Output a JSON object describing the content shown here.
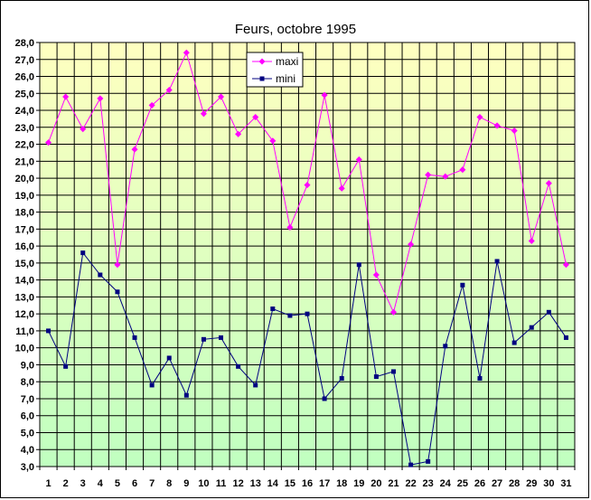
{
  "chart_data": {
    "type": "line",
    "title": "Feurs, octobre 1995",
    "x": [
      1,
      2,
      3,
      4,
      5,
      6,
      7,
      8,
      9,
      10,
      11,
      12,
      13,
      14,
      15,
      16,
      17,
      18,
      19,
      20,
      21,
      22,
      23,
      24,
      25,
      26,
      27,
      28,
      29,
      30,
      31
    ],
    "series": [
      {
        "name": "maxi",
        "color": "#ff00ff",
        "marker": "diamond",
        "values": [
          22.1,
          24.8,
          22.9,
          24.7,
          14.9,
          21.7,
          24.3,
          25.2,
          27.4,
          23.8,
          24.8,
          22.6,
          23.6,
          22.2,
          17.1,
          19.6,
          24.9,
          19.4,
          21.1,
          14.3,
          12.1,
          16.1,
          20.2,
          20.1,
          20.5,
          23.6,
          23.1,
          22.8,
          16.3,
          19.7,
          14.9
        ]
      },
      {
        "name": "mini",
        "color": "#000080",
        "marker": "square",
        "values": [
          11.0,
          8.9,
          15.6,
          14.3,
          13.3,
          10.6,
          7.8,
          9.4,
          7.2,
          10.5,
          10.6,
          8.9,
          7.8,
          12.3,
          11.9,
          12.0,
          7.0,
          8.2,
          14.9,
          8.3,
          8.6,
          3.1,
          3.3,
          10.1,
          13.7,
          8.2,
          15.1,
          10.3,
          11.2,
          12.1,
          10.6
        ]
      }
    ],
    "ylim": [
      3.0,
      28.0
    ],
    "ytick_step": 1.0,
    "grid": true,
    "legend": "top-center",
    "background_gradient": [
      "#ffffc0",
      "#c0ffc0"
    ]
  }
}
